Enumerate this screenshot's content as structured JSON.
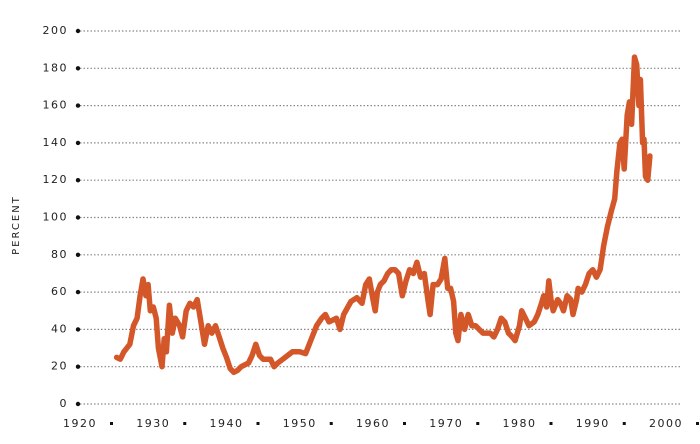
{
  "chart_data": {
    "type": "line",
    "y_label": "PERCENT",
    "color": "#d4572a",
    "grid": true,
    "xlim": [
      1920,
      2000
    ],
    "xticks": [
      1920,
      1930,
      1940,
      1950,
      1960,
      1970,
      1980,
      1990,
      2000
    ],
    "ylim": [
      0,
      200
    ],
    "yticks": [
      0,
      20,
      40,
      60,
      80,
      100,
      120,
      140,
      160,
      180,
      200
    ],
    "x": [
      1925.0,
      1925.5,
      1926,
      1926.8,
      1927.3,
      1927.8,
      1928.2,
      1928.6,
      1929,
      1929.3,
      1929.6,
      1930,
      1930.4,
      1930.7,
      1931.2,
      1931.5,
      1931.8,
      1932.2,
      1932.6,
      1933,
      1933.6,
      1934,
      1934.5,
      1935,
      1935.5,
      1936,
      1936.5,
      1937,
      1937.5,
      1938,
      1938.5,
      1939,
      1939.5,
      1940,
      1940.5,
      1941,
      1941.5,
      1942,
      1943,
      1943.5,
      1944,
      1944.5,
      1945,
      1946,
      1946.5,
      1947,
      1948,
      1949,
      1950,
      1950.8,
      1951.5,
      1952.3,
      1953,
      1953.5,
      1954,
      1955,
      1955.5,
      1956,
      1957,
      1957.8,
      1958.5,
      1959,
      1959.5,
      1960,
      1960.3,
      1960.6,
      1961,
      1961.5,
      1962,
      1962.5,
      1963,
      1963.5,
      1964,
      1964.5,
      1965,
      1965.5,
      1966,
      1966.5,
      1967,
      1967.5,
      1967.8,
      1968.2,
      1968.8,
      1969.3,
      1969.8,
      1970.2,
      1970.6,
      1971,
      1971.3,
      1971.6,
      1972,
      1972.5,
      1973,
      1973.5,
      1974,
      1974.5,
      1975,
      1976,
      1976.5,
      1977,
      1977.5,
      1978,
      1978.5,
      1979,
      1979.4,
      1980,
      1980.3,
      1980.8,
      1981.3,
      1982,
      1982.5,
      1983,
      1983.3,
      1983.7,
      1984,
      1984.3,
      1984.6,
      1985.2,
      1985.6,
      1986,
      1986.5,
      1987,
      1987.3,
      1987.8,
      1988,
      1988.5,
      1989,
      1989.5,
      1990,
      1990.5,
      1991,
      1991.5,
      1992,
      1992.5,
      1993,
      1993.3,
      1993.7,
      1994,
      1994.3,
      1994.7,
      1995,
      1995.3,
      1995.7,
      1996,
      1996.3,
      1996.5,
      1996.8,
      1997,
      1997.2,
      1997.5,
      1997.8
    ],
    "values": [
      25,
      24,
      28,
      32,
      42,
      46,
      58,
      67,
      58,
      64,
      50,
      52,
      46,
      30,
      20,
      35,
      28,
      53,
      38,
      46,
      42,
      36,
      50,
      54,
      52,
      56,
      44,
      32,
      42,
      38,
      42,
      36,
      30,
      25,
      19,
      17,
      18,
      20,
      22,
      26,
      32,
      26,
      24,
      24,
      20,
      22,
      25,
      28,
      28,
      27,
      34,
      42,
      46,
      48,
      44,
      46,
      40,
      48,
      55,
      57,
      54,
      64,
      67,
      56,
      50,
      60,
      64,
      66,
      70,
      72,
      72,
      70,
      58,
      66,
      72,
      70,
      76,
      68,
      70,
      56,
      48,
      64,
      64,
      67,
      78,
      62,
      62,
      55,
      38,
      34,
      48,
      40,
      48,
      42,
      42,
      40,
      38,
      38,
      36,
      40,
      46,
      44,
      38,
      36,
      34,
      42,
      50,
      46,
      42,
      44,
      48,
      54,
      58,
      52,
      66,
      56,
      50,
      56,
      54,
      50,
      58,
      56,
      48,
      56,
      62,
      60,
      64,
      70,
      72,
      68,
      72,
      85,
      95,
      103,
      110,
      125,
      140,
      142,
      126,
      155,
      162,
      150,
      186,
      182,
      160,
      174,
      140,
      142,
      122,
      120,
      133
    ]
  }
}
